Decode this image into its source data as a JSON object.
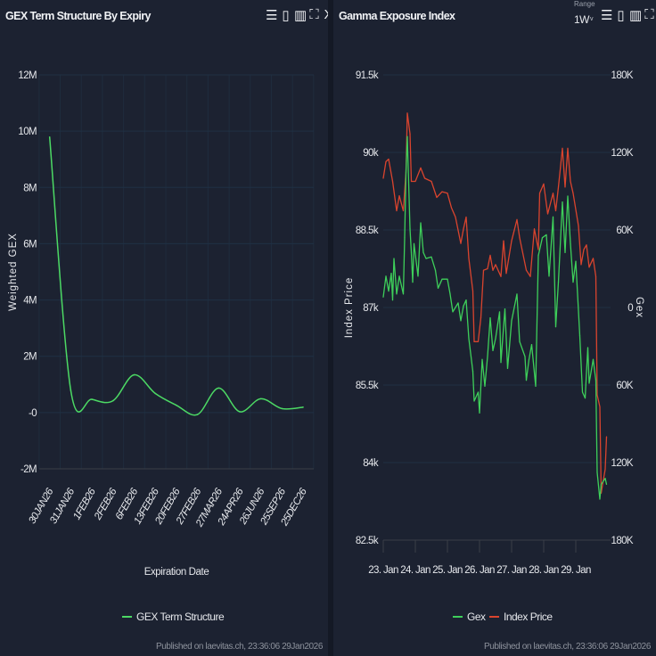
{
  "left": {
    "title": "GEX Term Structure By Expiry",
    "toolbar": [
      "menu-icon",
      "bookmark-icon",
      "book-icon",
      "fullscreen-icon",
      "close-icon"
    ],
    "published": "Published on laevitas.ch, 23:36:06 29Jan2026"
  },
  "right": {
    "title": "Gamma Exposure Index",
    "range_label": "Range",
    "range_value": "1W",
    "toolbar": [
      "menu-icon",
      "bookmark-icon",
      "book-icon",
      "fullscreen-icon",
      "close-icon"
    ],
    "published": "Published on laevitas.ch, 23:36:06 29Jan2026"
  },
  "chart_data": [
    {
      "type": "line",
      "title": "GEX Term Structure By Expiry",
      "xlabel": "Expiration Date",
      "ylabel": "Weighted GEX",
      "ylim": [
        -2000000,
        12000000
      ],
      "y_ticks": [
        "-2M",
        "-0",
        "2M",
        "4M",
        "6M",
        "8M",
        "10M",
        "12M"
      ],
      "grid": true,
      "legend": "bottom",
      "categories": [
        "30JAN26",
        "31JAN26",
        "1FEB26",
        "2FEB26",
        "6FEB26",
        "13FEB26",
        "20FEB26",
        "27FEB26",
        "27MAR26",
        "24APR26",
        "26JUN26",
        "25SEP26",
        "25DEC26"
      ],
      "series": [
        {
          "name": "GEX Term Structure",
          "color": "#4cd964",
          "values": [
            9790000,
            790000,
            470000,
            420000,
            1340000,
            680000,
            260000,
            -70000,
            870000,
            30000,
            490000,
            140000,
            190000
          ]
        }
      ]
    },
    {
      "type": "line",
      "title": "Gamma Exposure Index",
      "ylabel": "Index Price",
      "ylabel_right": "Gex",
      "ylim": [
        82500,
        91500
      ],
      "ylim_right": [
        -180000,
        180000
      ],
      "y_ticks": [
        "82.5k",
        "84k",
        "85.5k",
        "87k",
        "88.5k",
        "90k",
        "91.5k"
      ],
      "y_ticks_right": [
        "180K",
        "120K",
        "60K",
        "0",
        "60K",
        "120K",
        "180K"
      ],
      "x_ticks": [
        "23. Jan",
        "24. Jan",
        "25. Jan",
        "26. Jan",
        "27. Jan",
        "28. Jan",
        "29. Jan"
      ],
      "grid": true,
      "legend": "bottom",
      "series": [
        {
          "name": "Gex",
          "color": "#3ecf5a",
          "axis": "right",
          "x": [
            "2026-01-23 00",
            "2026-01-23 02",
            "2026-01-23 04",
            "2026-01-23 06",
            "2026-01-23 07",
            "2026-01-23 08",
            "2026-01-23 10",
            "2026-01-23 12",
            "2026-01-23 15",
            "2026-01-23 16",
            "2026-01-23 17",
            "2026-01-23 18",
            "2026-01-23 20",
            "2026-01-23 21",
            "2026-01-23 22",
            "2026-01-23 23",
            "2026-01-24 02",
            "2026-01-24 04",
            "2026-01-24 06",
            "2026-01-24 08",
            "2026-01-24 12",
            "2026-01-24 15",
            "2026-01-24 17",
            "2026-01-24 20",
            "2026-01-25 00",
            "2026-01-25 02",
            "2026-01-25 04",
            "2026-01-25 08",
            "2026-01-25 10",
            "2026-01-25 12",
            "2026-01-25 14",
            "2026-01-25 16",
            "2026-01-25 19",
            "2026-01-25 20",
            "2026-01-25 23",
            "2026-01-26 00",
            "2026-01-26 02",
            "2026-01-26 04",
            "2026-01-26 06",
            "2026-01-26 08",
            "2026-01-26 10",
            "2026-01-26 12",
            "2026-01-26 15",
            "2026-01-26 16",
            "2026-01-26 19",
            "2026-01-26 21",
            "2026-01-27 00",
            "2026-01-27 04",
            "2026-01-27 06",
            "2026-01-27 10",
            "2026-01-27 11",
            "2026-01-27 13",
            "2026-01-27 15",
            "2026-01-27 18",
            "2026-01-27 20",
            "2026-01-27 23",
            "2026-01-28 02",
            "2026-01-28 04",
            "2026-01-28 07",
            "2026-01-28 09",
            "2026-01-28 11",
            "2026-01-28 14",
            "2026-01-28 16",
            "2026-01-28 18",
            "2026-01-28 20",
            "2026-01-28 22",
            "2026-01-29 00",
            "2026-01-29 03",
            "2026-01-29 05",
            "2026-01-29 07",
            "2026-01-29 09",
            "2026-01-29 10",
            "2026-01-29 13",
            "2026-01-29 15",
            "2026-01-29 16",
            "2026-01-29 18",
            "2026-01-29 19",
            "2026-01-29 22",
            "2026-01-29 23"
          ],
          "y": [
            8100,
            24200,
            12700,
            26500,
            5800,
            37900,
            10400,
            24200,
            10400,
            54000,
            104600,
            132200,
            60900,
            42500,
            19600,
            49400,
            24200,
            65500,
            42500,
            37900,
            39100,
            28800,
            15000,
            21900,
            21900,
            10400,
            -3400,
            3500,
            -10300,
            1200,
            5800,
            -24100,
            -49400,
            -72400,
            -65500,
            -81600,
            -40200,
            -60900,
            -37900,
            -8000,
            -33300,
            -24100,
            -3400,
            -42500,
            -1100,
            -47100,
            -10300,
            10400,
            -26400,
            -37900,
            -56300,
            -40200,
            -28700,
            -60900,
            40200,
            54000,
            56300,
            24200,
            70100,
            -14900,
            19600,
            81600,
            42500,
            86200,
            49400,
            19600,
            35700,
            -21800,
            -65500,
            -70100,
            -31000,
            -58600,
            -40200,
            -56300,
            -127600,
            -148300,
            -136800,
            -132200,
            -136800
          ]
        },
        {
          "name": "Index Price",
          "color": "#d9442e",
          "axis": "left",
          "x": [
            "2026-01-23 00",
            "2026-01-23 02",
            "2026-01-23 04",
            "2026-01-23 07",
            "2026-01-23 10",
            "2026-01-23 12",
            "2026-01-23 15",
            "2026-01-23 17",
            "2026-01-23 18",
            "2026-01-23 20",
            "2026-01-23 21",
            "2026-01-24 00",
            "2026-01-24 04",
            "2026-01-24 07",
            "2026-01-24 12",
            "2026-01-24 16",
            "2026-01-24 20",
            "2026-01-25 00",
            "2026-01-25 03",
            "2026-01-25 06",
            "2026-01-25 10",
            "2026-01-25 12",
            "2026-01-25 14",
            "2026-01-25 16",
            "2026-01-25 19",
            "2026-01-25 20",
            "2026-01-25 23",
            "2026-01-26 01",
            "2026-01-26 03",
            "2026-01-26 06",
            "2026-01-26 08",
            "2026-01-26 10",
            "2026-01-26 12",
            "2026-01-26 16",
            "2026-01-26 18",
            "2026-01-26 20",
            "2026-01-27 00",
            "2026-01-27 04",
            "2026-01-27 06",
            "2026-01-27 11",
            "2026-01-27 14",
            "2026-01-27 17",
            "2026-01-27 20",
            "2026-01-27 21",
            "2026-01-28 00",
            "2026-01-28 03",
            "2026-01-28 07",
            "2026-01-28 09",
            "2026-01-28 11",
            "2026-01-28 14",
            "2026-01-28 16",
            "2026-01-28 18",
            "2026-01-28 20",
            "2026-01-28 22",
            "2026-01-29 02",
            "2026-01-29 04",
            "2026-01-29 06",
            "2026-01-29 08",
            "2026-01-29 10",
            "2026-01-29 13",
            "2026-01-29 15",
            "2026-01-29 16",
            "2026-01-29 18",
            "2026-01-29 19",
            "2026-01-29 22",
            "2026-01-29 23"
          ],
          "y": [
            89500,
            89820,
            89870,
            89440,
            88870,
            89160,
            88870,
            89620,
            90760,
            90360,
            89440,
            89440,
            89700,
            89500,
            89440,
            89130,
            89240,
            89210,
            88930,
            88750,
            88240,
            88520,
            88750,
            87950,
            87320,
            86340,
            86340,
            86800,
            87720,
            87750,
            88010,
            87720,
            87830,
            87600,
            88290,
            87660,
            88290,
            88700,
            88350,
            87720,
            87600,
            88520,
            88120,
            89210,
            89390,
            88810,
            89210,
            88870,
            89330,
            90080,
            89330,
            90080,
            89440,
            89210,
            88580,
            87830,
            88120,
            88210,
            87780,
            87950,
            87600,
            85310,
            85080,
            83410,
            83870,
            84500
          ]
        }
      ]
    }
  ]
}
